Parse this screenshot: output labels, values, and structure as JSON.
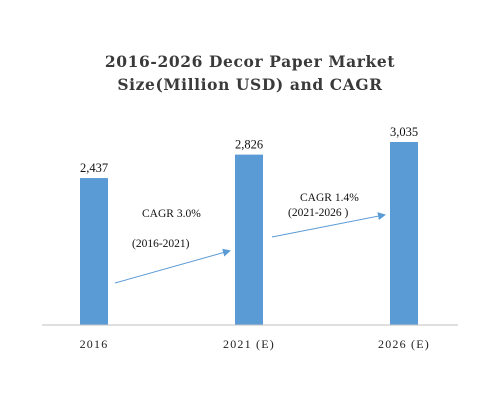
{
  "chart_data": {
    "type": "bar",
    "title_lines": [
      "2016-2026 Decor Paper Market",
      "Size(Million USD) and CAGR"
    ],
    "categories": [
      "2016",
      "2021 (E)",
      "2026 (E)"
    ],
    "values": [
      2437,
      2826,
      3035
    ],
    "value_labels": [
      "2,437",
      "2,826",
      "3,035"
    ],
    "bar_color": "#5b9bd5",
    "axis_color": "#bfbfbf",
    "annotations": [
      {
        "cagr": "CAGR 3.0%",
        "period": "(2016-2021)"
      },
      {
        "cagr": "CAGR 1.4%",
        "period": "(2021-2026 )"
      }
    ]
  }
}
